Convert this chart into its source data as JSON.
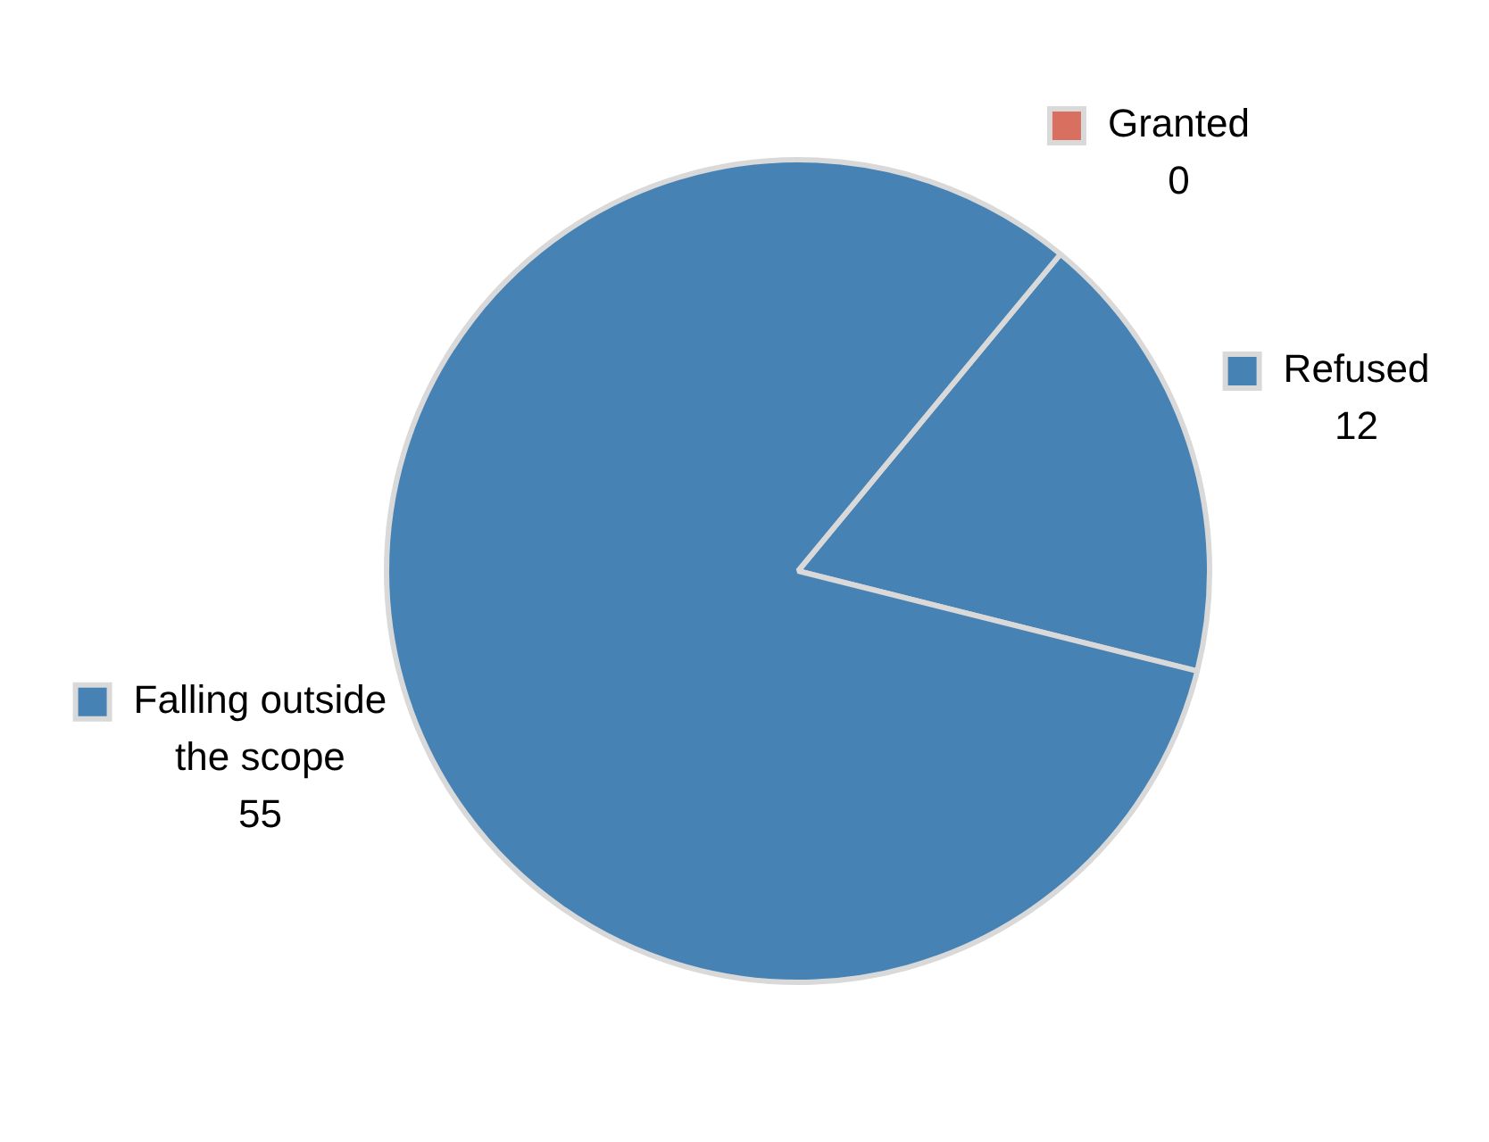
{
  "chart_data": {
    "type": "pie",
    "categories": [
      "Granted",
      "Refused",
      "Falling outside the scope"
    ],
    "values": [
      0,
      12,
      55
    ],
    "colors": [
      "#d9705f",
      "#4682b4",
      "#4682b4"
    ],
    "value_labels": [
      "0",
      "12",
      "55"
    ],
    "legend": "top left"
  }
}
